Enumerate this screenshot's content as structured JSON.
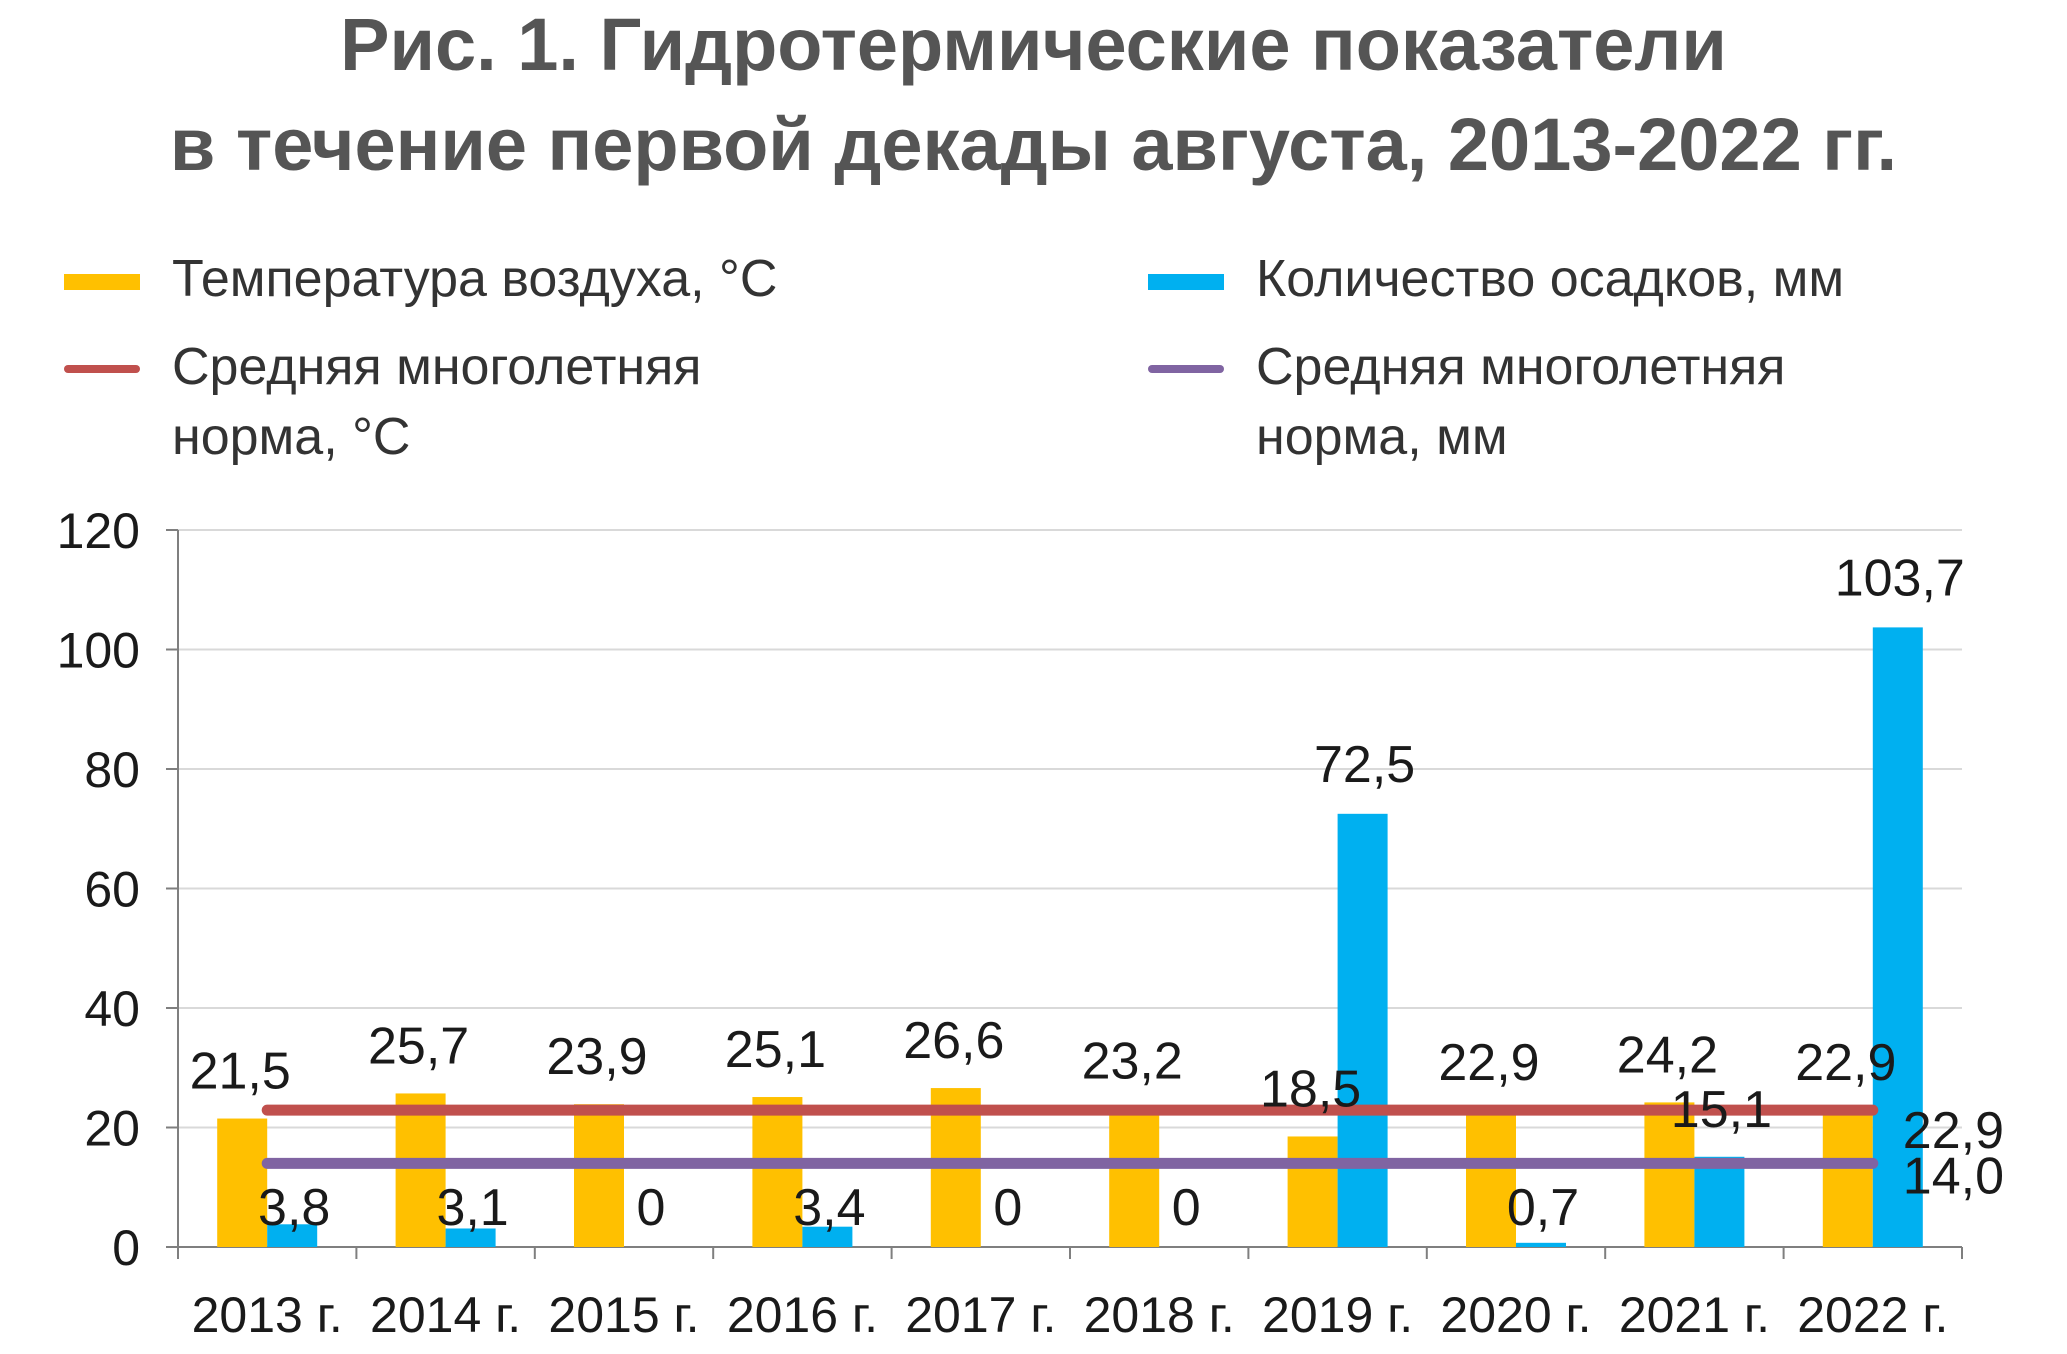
{
  "chart_data": {
    "type": "bar",
    "title_line1": "Рис. 1. Гидротермические показатели",
    "title_line2": "в течение первой декады августа, 2013-2022 гг.",
    "categories": [
      "2013 г.",
      "2014 г.",
      "2015 г.",
      "2016 г.",
      "2017 г.",
      "2018 г.",
      "2019 г.",
      "2020 г.",
      "2021 г.",
      "2022 г."
    ],
    "ylim": [
      0,
      120
    ],
    "yticks": [
      "0",
      "20",
      "40",
      "60",
      "80",
      "100",
      "120"
    ],
    "grid": true,
    "legend_position": "top",
    "series": [
      {
        "name": "Температура воздуха, °С",
        "kind": "bar",
        "color": "#FFC000",
        "values": [
          21.5,
          25.7,
          23.9,
          25.1,
          26.6,
          23.2,
          18.5,
          22.9,
          24.2,
          22.9
        ],
        "labels": [
          "21,5",
          "25,7",
          "23,9",
          "25,1",
          "26,6",
          "23,2",
          "18,5",
          "22,9",
          "24,2",
          "22,9"
        ]
      },
      {
        "name": "Количество осадков, мм",
        "kind": "bar",
        "color": "#00B0F0",
        "values": [
          3.8,
          3.1,
          0,
          3.4,
          0,
          0,
          72.5,
          0.7,
          15.1,
          103.7
        ],
        "labels": [
          "3,8",
          "3,1",
          "0",
          "3,4",
          "0",
          "0",
          "72,5",
          "0,7",
          "15,1",
          "103,7"
        ]
      },
      {
        "name": "Средняя многолетняя\nнорма, °С",
        "kind": "line",
        "color": "#C0504D",
        "value": 22.9,
        "label": "22,9"
      },
      {
        "name": "Средняя многолетняя\nнорма, мм",
        "kind": "line",
        "color": "#8064A2",
        "value": 14.0,
        "label": "14,0"
      }
    ]
  }
}
